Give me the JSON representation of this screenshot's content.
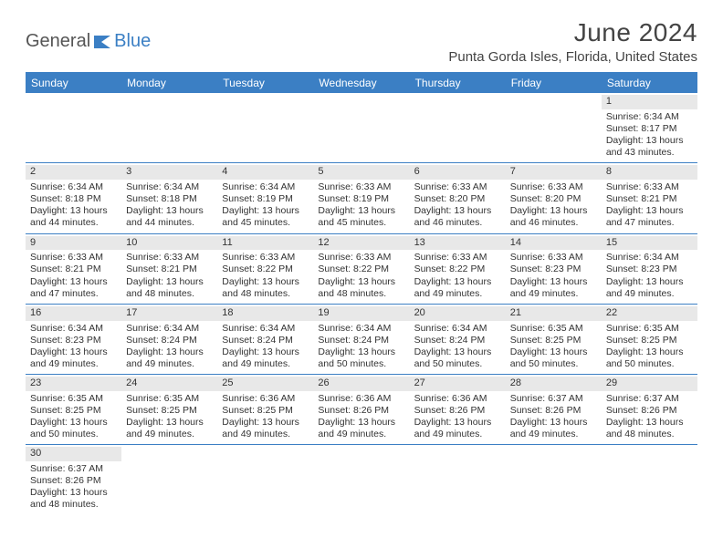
{
  "branding": {
    "logo_part1": "General",
    "logo_part2": "Blue",
    "logo_accent_color": "#3b7fc4",
    "logo_text_color": "#555555"
  },
  "header": {
    "month_title": "June 2024",
    "location": "Punta Gorda Isles, Florida, United States"
  },
  "theme": {
    "primary_color": "#3b7fc4",
    "header_text_color": "#ffffff",
    "daynum_bg": "#e8e8e8",
    "body_text_color": "#333333",
    "background_color": "#ffffff",
    "font_family": "Arial"
  },
  "calendar": {
    "type": "table",
    "day_headers": [
      "Sunday",
      "Monday",
      "Tuesday",
      "Wednesday",
      "Thursday",
      "Friday",
      "Saturday"
    ],
    "weeks": [
      [
        null,
        null,
        null,
        null,
        null,
        null,
        {
          "n": "1",
          "sunrise": "Sunrise: 6:34 AM",
          "sunset": "Sunset: 8:17 PM",
          "d1": "Daylight: 13 hours",
          "d2": "and 43 minutes."
        }
      ],
      [
        {
          "n": "2",
          "sunrise": "Sunrise: 6:34 AM",
          "sunset": "Sunset: 8:18 PM",
          "d1": "Daylight: 13 hours",
          "d2": "and 44 minutes."
        },
        {
          "n": "3",
          "sunrise": "Sunrise: 6:34 AM",
          "sunset": "Sunset: 8:18 PM",
          "d1": "Daylight: 13 hours",
          "d2": "and 44 minutes."
        },
        {
          "n": "4",
          "sunrise": "Sunrise: 6:34 AM",
          "sunset": "Sunset: 8:19 PM",
          "d1": "Daylight: 13 hours",
          "d2": "and 45 minutes."
        },
        {
          "n": "5",
          "sunrise": "Sunrise: 6:33 AM",
          "sunset": "Sunset: 8:19 PM",
          "d1": "Daylight: 13 hours",
          "d2": "and 45 minutes."
        },
        {
          "n": "6",
          "sunrise": "Sunrise: 6:33 AM",
          "sunset": "Sunset: 8:20 PM",
          "d1": "Daylight: 13 hours",
          "d2": "and 46 minutes."
        },
        {
          "n": "7",
          "sunrise": "Sunrise: 6:33 AM",
          "sunset": "Sunset: 8:20 PM",
          "d1": "Daylight: 13 hours",
          "d2": "and 46 minutes."
        },
        {
          "n": "8",
          "sunrise": "Sunrise: 6:33 AM",
          "sunset": "Sunset: 8:21 PM",
          "d1": "Daylight: 13 hours",
          "d2": "and 47 minutes."
        }
      ],
      [
        {
          "n": "9",
          "sunrise": "Sunrise: 6:33 AM",
          "sunset": "Sunset: 8:21 PM",
          "d1": "Daylight: 13 hours",
          "d2": "and 47 minutes."
        },
        {
          "n": "10",
          "sunrise": "Sunrise: 6:33 AM",
          "sunset": "Sunset: 8:21 PM",
          "d1": "Daylight: 13 hours",
          "d2": "and 48 minutes."
        },
        {
          "n": "11",
          "sunrise": "Sunrise: 6:33 AM",
          "sunset": "Sunset: 8:22 PM",
          "d1": "Daylight: 13 hours",
          "d2": "and 48 minutes."
        },
        {
          "n": "12",
          "sunrise": "Sunrise: 6:33 AM",
          "sunset": "Sunset: 8:22 PM",
          "d1": "Daylight: 13 hours",
          "d2": "and 48 minutes."
        },
        {
          "n": "13",
          "sunrise": "Sunrise: 6:33 AM",
          "sunset": "Sunset: 8:22 PM",
          "d1": "Daylight: 13 hours",
          "d2": "and 49 minutes."
        },
        {
          "n": "14",
          "sunrise": "Sunrise: 6:33 AM",
          "sunset": "Sunset: 8:23 PM",
          "d1": "Daylight: 13 hours",
          "d2": "and 49 minutes."
        },
        {
          "n": "15",
          "sunrise": "Sunrise: 6:34 AM",
          "sunset": "Sunset: 8:23 PM",
          "d1": "Daylight: 13 hours",
          "d2": "and 49 minutes."
        }
      ],
      [
        {
          "n": "16",
          "sunrise": "Sunrise: 6:34 AM",
          "sunset": "Sunset: 8:23 PM",
          "d1": "Daylight: 13 hours",
          "d2": "and 49 minutes."
        },
        {
          "n": "17",
          "sunrise": "Sunrise: 6:34 AM",
          "sunset": "Sunset: 8:24 PM",
          "d1": "Daylight: 13 hours",
          "d2": "and 49 minutes."
        },
        {
          "n": "18",
          "sunrise": "Sunrise: 6:34 AM",
          "sunset": "Sunset: 8:24 PM",
          "d1": "Daylight: 13 hours",
          "d2": "and 49 minutes."
        },
        {
          "n": "19",
          "sunrise": "Sunrise: 6:34 AM",
          "sunset": "Sunset: 8:24 PM",
          "d1": "Daylight: 13 hours",
          "d2": "and 50 minutes."
        },
        {
          "n": "20",
          "sunrise": "Sunrise: 6:34 AM",
          "sunset": "Sunset: 8:24 PM",
          "d1": "Daylight: 13 hours",
          "d2": "and 50 minutes."
        },
        {
          "n": "21",
          "sunrise": "Sunrise: 6:35 AM",
          "sunset": "Sunset: 8:25 PM",
          "d1": "Daylight: 13 hours",
          "d2": "and 50 minutes."
        },
        {
          "n": "22",
          "sunrise": "Sunrise: 6:35 AM",
          "sunset": "Sunset: 8:25 PM",
          "d1": "Daylight: 13 hours",
          "d2": "and 50 minutes."
        }
      ],
      [
        {
          "n": "23",
          "sunrise": "Sunrise: 6:35 AM",
          "sunset": "Sunset: 8:25 PM",
          "d1": "Daylight: 13 hours",
          "d2": "and 50 minutes."
        },
        {
          "n": "24",
          "sunrise": "Sunrise: 6:35 AM",
          "sunset": "Sunset: 8:25 PM",
          "d1": "Daylight: 13 hours",
          "d2": "and 49 minutes."
        },
        {
          "n": "25",
          "sunrise": "Sunrise: 6:36 AM",
          "sunset": "Sunset: 8:25 PM",
          "d1": "Daylight: 13 hours",
          "d2": "and 49 minutes."
        },
        {
          "n": "26",
          "sunrise": "Sunrise: 6:36 AM",
          "sunset": "Sunset: 8:26 PM",
          "d1": "Daylight: 13 hours",
          "d2": "and 49 minutes."
        },
        {
          "n": "27",
          "sunrise": "Sunrise: 6:36 AM",
          "sunset": "Sunset: 8:26 PM",
          "d1": "Daylight: 13 hours",
          "d2": "and 49 minutes."
        },
        {
          "n": "28",
          "sunrise": "Sunrise: 6:37 AM",
          "sunset": "Sunset: 8:26 PM",
          "d1": "Daylight: 13 hours",
          "d2": "and 49 minutes."
        },
        {
          "n": "29",
          "sunrise": "Sunrise: 6:37 AM",
          "sunset": "Sunset: 8:26 PM",
          "d1": "Daylight: 13 hours",
          "d2": "and 48 minutes."
        }
      ],
      [
        {
          "n": "30",
          "sunrise": "Sunrise: 6:37 AM",
          "sunset": "Sunset: 8:26 PM",
          "d1": "Daylight: 13 hours",
          "d2": "and 48 minutes."
        },
        null,
        null,
        null,
        null,
        null,
        null
      ]
    ]
  }
}
